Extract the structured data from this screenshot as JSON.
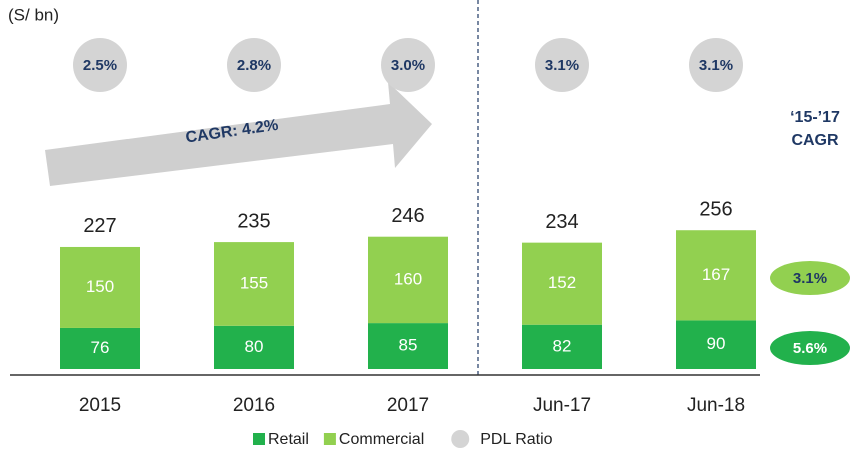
{
  "chart_data": {
    "type": "stacked_bar",
    "unit_label": "(S/ bn)",
    "categories": [
      "2015",
      "2016",
      "2017",
      "Jun-17",
      "Jun-18"
    ],
    "series": [
      {
        "name": "Retail",
        "color": "#22b14c",
        "values": [
          76,
          80,
          85,
          82,
          90
        ],
        "cagr": 5.6,
        "cagr_label": "5.6%"
      },
      {
        "name": "Commercial",
        "color": "#92d050",
        "values": [
          150,
          155,
          160,
          152,
          167
        ],
        "cagr": 3.1,
        "cagr_label": "3.1%"
      }
    ],
    "totals": [
      227,
      235,
      246,
      234,
      256
    ],
    "pdl_ratio": {
      "name": "PDL Ratio",
      "color": "#d4d4d4",
      "values": [
        2.5,
        2.8,
        3.0,
        3.1,
        3.1
      ],
      "value_labels": [
        "2.5%",
        "2.8%",
        "3.0%",
        "3.1%",
        "3.1%"
      ]
    },
    "annotation": "CAGR: 4.2%",
    "cagr_title": [
      "‘15-’17",
      "CAGR"
    ]
  }
}
